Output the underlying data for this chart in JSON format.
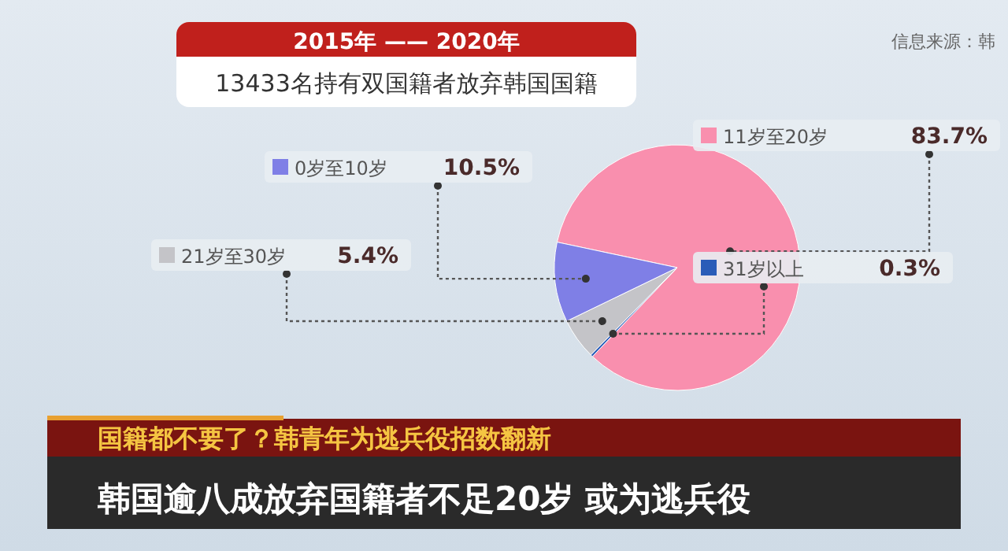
{
  "chart_data": {
    "type": "pie",
    "title": "2015年 —— 2020年",
    "subtitle": "13433名持有双国籍者放弃韩国国籍",
    "categories": [
      "11岁至20岁",
      "31岁以上",
      "21岁至30岁",
      "0岁至10岁"
    ],
    "values": [
      83.7,
      0.3,
      5.4,
      10.5
    ],
    "colors": [
      "#f98fae",
      "#2a5cb8",
      "#c4c4c8",
      "#7f7fe6"
    ],
    "legend": "left",
    "value_labels": [
      "83.7%",
      "0.3%",
      "5.4%",
      "10.5%"
    ],
    "annotations": [
      "信息来源：韩",
      "国籍都不要了？韩青年为逃兵役招数翻新",
      "韩国逾八成放弃国籍者不足20岁 或为逃兵役"
    ]
  }
}
